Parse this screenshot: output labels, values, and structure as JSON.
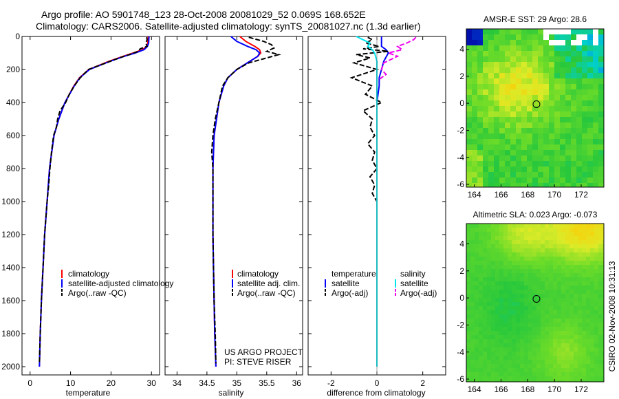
{
  "header": {
    "line1": "Argo profile: AO 5901748_123 28-Oct-2008 20081029_52 0.069S 168.652E",
    "line2": "Climatology: CARS2006. Satellite-adjusted climatology: synTS_20081027.nc (1.3d earlier)"
  },
  "side_label": "CSIRO 02-Nov-2008 10:31:13",
  "colors": {
    "climatology": "#ff0000",
    "satellite": "#0000ff",
    "argo": "#000000",
    "sal_satellite": "#00e5ee",
    "sal_argo": "#ee00ee"
  },
  "chart_data": [
    {
      "type": "line",
      "id": "temperature",
      "xlabel": "temperature",
      "xlim": [
        -2,
        32
      ],
      "xticks": [
        0,
        10,
        20,
        30
      ],
      "ylim": [
        0,
        2050
      ],
      "yticks": [
        0,
        200,
        400,
        600,
        800,
        1000,
        1200,
        1400,
        1600,
        1800,
        2000
      ],
      "y_reversed": true,
      "legend": [
        "climatology",
        "satellite-adjusted climatology",
        "Argo(..raw -QC)"
      ],
      "series": [
        {
          "name": "climatology",
          "style": "solid",
          "color": "red",
          "depth": [
            0,
            40,
            60,
            80,
            100,
            120,
            150,
            200,
            250,
            300,
            400,
            500,
            600,
            800,
            1000,
            1200,
            1400,
            1600,
            1800,
            2000
          ],
          "values": [
            29.2,
            29.1,
            28.8,
            27.8,
            25.5,
            23,
            19.5,
            14.5,
            12.2,
            10.8,
            8.6,
            7.1,
            5.9,
            4.8,
            4.2,
            3.6,
            3.2,
            2.8,
            2.5,
            2.3
          ]
        },
        {
          "name": "satellite-adjusted climatology",
          "style": "solid",
          "color": "blue",
          "depth": [
            0,
            40,
            60,
            80,
            100,
            120,
            150,
            200,
            250,
            300,
            400,
            500,
            600,
            800,
            1000,
            1200,
            1400,
            1600,
            1800,
            2000
          ],
          "values": [
            29.4,
            29.3,
            29,
            28.2,
            26,
            23.3,
            19.8,
            14.7,
            12.3,
            10.9,
            8.6,
            7.1,
            5.9,
            4.8,
            4.2,
            3.6,
            3.2,
            2.8,
            2.5,
            2.3
          ]
        },
        {
          "name": "Argo(..raw -QC)",
          "style": "dashed",
          "color": "black",
          "depth": [
            5,
            20,
            40,
            60,
            75,
            90,
            110,
            130,
            160,
            200,
            250,
            300,
            350,
            400,
            450,
            500,
            550,
            600,
            700,
            800,
            900,
            1000,
            1200,
            1400,
            1600,
            1800,
            1980
          ],
          "values": [
            28.8,
            28.9,
            28.6,
            28.9,
            27.2,
            26.8,
            24.5,
            22,
            18.8,
            14.4,
            12.4,
            10.9,
            9.7,
            8.8,
            7.4,
            6.8,
            6.5,
            5.8,
            5.3,
            4.9,
            4.6,
            4.2,
            3.6,
            3.2,
            2.8,
            2.5,
            2.3
          ]
        }
      ]
    },
    {
      "type": "line",
      "id": "salinity",
      "xlabel": "salinity",
      "xlim": [
        33.8,
        36.1
      ],
      "xticks": [
        34,
        34.5,
        35,
        35.5,
        36
      ],
      "ylim": [
        0,
        2050
      ],
      "y_reversed": true,
      "legend": [
        "climatology",
        "satellite adj. clim.",
        "Argo(..raw -QC)"
      ],
      "annotation": [
        "US ARGO PROJECT",
        "PI: STEVE RISER"
      ],
      "series": [
        {
          "name": "climatology",
          "style": "solid",
          "color": "red",
          "depth": [
            0,
            30,
            60,
            80,
            100,
            120,
            150,
            200,
            250,
            300,
            400,
            500,
            600,
            800,
            1000,
            1200,
            1400,
            1600,
            1800,
            2000
          ],
          "values": [
            35.05,
            35.15,
            35.3,
            35.38,
            35.4,
            35.35,
            35.22,
            35.0,
            34.85,
            34.78,
            34.7,
            34.66,
            34.62,
            34.6,
            34.6,
            34.6,
            34.61,
            34.62,
            34.63,
            34.65
          ]
        },
        {
          "name": "satellite adj. clim.",
          "style": "solid",
          "color": "blue",
          "depth": [
            0,
            30,
            60,
            80,
            100,
            120,
            150,
            200,
            250,
            300,
            400,
            500,
            600,
            800,
            1000,
            1200,
            1400,
            1600,
            1800,
            2000
          ],
          "values": [
            34.9,
            35.0,
            35.18,
            35.32,
            35.38,
            35.35,
            35.22,
            35.0,
            34.85,
            34.78,
            34.7,
            34.66,
            34.62,
            34.6,
            34.6,
            34.6,
            34.61,
            34.62,
            34.63,
            34.65
          ]
        },
        {
          "name": "Argo(..raw -QC)",
          "style": "dashed",
          "color": "black",
          "depth": [
            5,
            30,
            50,
            70,
            90,
            110,
            125,
            140,
            160,
            200,
            250,
            300,
            400,
            500,
            600,
            700,
            800,
            1000,
            1200,
            1400,
            1600,
            1800,
            1980
          ],
          "values": [
            35.2,
            35.45,
            35.58,
            35.62,
            35.5,
            35.7,
            35.55,
            35.4,
            35.2,
            35.0,
            34.85,
            34.76,
            34.7,
            34.64,
            34.6,
            34.58,
            34.6,
            34.6,
            34.6,
            34.61,
            34.62,
            34.64,
            34.65
          ]
        }
      ]
    },
    {
      "type": "line",
      "id": "difference",
      "xlabel": "difference from climatology",
      "xlim": [
        -3,
        3
      ],
      "xticks": [
        -2,
        0,
        2
      ],
      "ylim": [
        0,
        2050
      ],
      "y_reversed": true,
      "legend": {
        "temperature": [
          "satellite",
          "Argo(-adj)"
        ],
        "salinity": [
          "satellite",
          "Argo(-adj)"
        ]
      },
      "legend_headers": [
        "temperature",
        "salinity"
      ],
      "series": [
        {
          "name": "temperature satellite",
          "style": "solid",
          "color": "blue",
          "depth": [
            0,
            40,
            60,
            80,
            100,
            150,
            200,
            250,
            300,
            400,
            2000
          ],
          "values": [
            0.2,
            0.2,
            0.2,
            0.4,
            0.5,
            0.3,
            0.2,
            0.1,
            0.1,
            0,
            0
          ]
        },
        {
          "name": "temperature Argo(-adj)",
          "style": "dashed",
          "color": "black",
          "depth": [
            5,
            20,
            40,
            60,
            75,
            90,
            110,
            130,
            160,
            200,
            250,
            300,
            350,
            400,
            450,
            500,
            550,
            600,
            650,
            700,
            750,
            800,
            850,
            900,
            950,
            1000
          ],
          "values": [
            -0.4,
            -0.2,
            -0.5,
            0.1,
            -0.6,
            0.5,
            -0.9,
            -0.3,
            -1.0,
            0.0,
            -1.1,
            -0.2,
            -0.5,
            0.2,
            -0.6,
            -0.2,
            -0.3,
            -0.1,
            -0.4,
            -0.1,
            -0.2,
            0.0,
            -0.3,
            -0.1,
            -0.2,
            0.0
          ]
        },
        {
          "name": "salinity satellite",
          "style": "solid",
          "color": "cyan",
          "depth": [
            0,
            20,
            40,
            60,
            80,
            100,
            150,
            200,
            2000
          ],
          "values": [
            -0.9,
            -0.6,
            -0.3,
            -0.4,
            -0.2,
            -0.1,
            0,
            0,
            0
          ]
        },
        {
          "name": "salinity Argo(-adj)",
          "style": "dashed",
          "color": "magenta",
          "depth": [
            5,
            20,
            40,
            60,
            80,
            100,
            120,
            140,
            160,
            200,
            230,
            260
          ],
          "values": [
            1.7,
            1.6,
            1.3,
            0.9,
            1.1,
            0.5,
            0.9,
            0.6,
            0.3,
            0.2,
            0.4,
            0.1
          ]
        }
      ]
    },
    {
      "type": "heatmap",
      "id": "sst_map",
      "title": "AMSR-E SST: 29 Argo: 28.6",
      "xticks": [
        164,
        166,
        168,
        170,
        172
      ],
      "yticks": [
        4,
        2,
        0,
        -2,
        -4,
        -6
      ],
      "float_position": {
        "lon": 168.652,
        "lat": -0.069
      }
    },
    {
      "type": "heatmap",
      "id": "sla_map",
      "title": "Altimetric SLA: 0.023 Argo: -0.073",
      "xticks": [
        164,
        166,
        168,
        170,
        172
      ],
      "yticks": [
        4,
        2,
        0,
        -2,
        -4,
        -6
      ],
      "float_position": {
        "lon": 168.652,
        "lat": -0.069
      }
    }
  ]
}
